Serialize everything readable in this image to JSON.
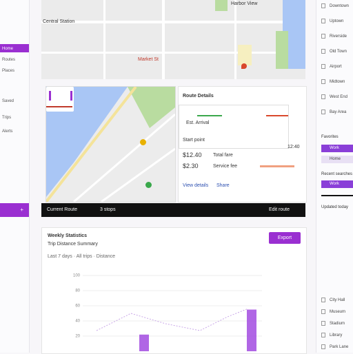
{
  "sidebar": {
    "items": [
      "Home",
      "Routes",
      "Places",
      "Saved",
      "Trips",
      "Alerts"
    ],
    "button": "+"
  },
  "map_labels": [
    "Central Station",
    "Market St",
    "Harbor View"
  ],
  "info": {
    "title": "Route Details",
    "eta": "Est. Arrival",
    "row1": "Start point",
    "row1_value": "12:40",
    "price": "$12.40",
    "price_note": "Total fare",
    "price2": "$2.30",
    "price2_note": "Service fee",
    "link1": "View details",
    "link2": "Share"
  },
  "toolbar": {
    "left": "Current Route",
    "mid": "3 stops",
    "right": "Edit route"
  },
  "chart": {
    "title": "Weekly Statistics",
    "subtitle": "Trip Distance Summary",
    "filter": "Last 7 days · All trips · Distance",
    "button": "Export",
    "ylim": [
      0,
      100
    ],
    "yticks": [
      100,
      80,
      60,
      40,
      20
    ],
    "values": [
      22,
      55
    ]
  },
  "right": {
    "items": [
      "Downtown",
      "Uptown",
      "Riverside",
      "Old Town",
      "Airport",
      "Midtown",
      "West End",
      "Bay Area"
    ],
    "section1": "Favorites",
    "tag1": "Work",
    "tag2": "Home",
    "section2": "Recent searches",
    "note": "Updated today",
    "items2": [
      "City Hall",
      "Museum",
      "Stadium",
      "Library",
      "Park Lane"
    ]
  }
}
